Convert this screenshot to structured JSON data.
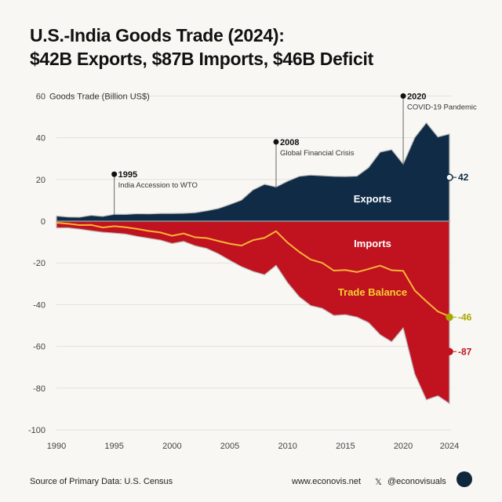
{
  "title_line1": "U.S.-India Goods Trade (2024):",
  "title_line2": "$42B Exports, $87B Imports, $46B Deficit",
  "footer": {
    "source": "Source of Primary Data: U.S. Census",
    "website": "www.econovis.net",
    "handle": "@econovisuals",
    "logo": "EV"
  },
  "chart_data": {
    "type": "area",
    "ylabel": "Goods Trade (Billion US$)",
    "ylim": [
      -100,
      60
    ],
    "yticks": [
      60,
      40,
      20,
      0,
      -20,
      -40,
      -60,
      -80,
      -100
    ],
    "xticks": [
      1990,
      1995,
      2000,
      2005,
      2010,
      2015,
      2020,
      2024
    ],
    "x": [
      1990,
      1991,
      1992,
      1993,
      1994,
      1995,
      1996,
      1997,
      1998,
      1999,
      2000,
      2001,
      2002,
      2003,
      2004,
      2005,
      2006,
      2007,
      2008,
      2009,
      2010,
      2011,
      2012,
      2013,
      2014,
      2015,
      2016,
      2017,
      2018,
      2019,
      2020,
      2021,
      2022,
      2023,
      2024
    ],
    "series": [
      {
        "name": "Exports",
        "color": "#0f2b46",
        "values": [
          2.5,
          2.0,
          1.9,
          2.8,
          2.3,
          3.3,
          3.3,
          3.6,
          3.5,
          3.7,
          3.7,
          3.8,
          4.1,
          5.0,
          6.1,
          8.0,
          10.1,
          15.0,
          17.7,
          16.4,
          19.2,
          21.5,
          22.1,
          21.8,
          21.5,
          21.4,
          21.6,
          25.7,
          33.1,
          34.3,
          27.4,
          40.1,
          47.2,
          40.4,
          41.8
        ]
      },
      {
        "name": "Imports",
        "color": "#c1121f",
        "values": [
          -3.2,
          -3.2,
          -3.8,
          -4.6,
          -5.3,
          -5.7,
          -6.2,
          -7.3,
          -8.2,
          -9.1,
          -10.7,
          -9.7,
          -11.8,
          -13.1,
          -15.6,
          -18.8,
          -21.8,
          -24.1,
          -25.7,
          -21.2,
          -29.5,
          -36.2,
          -40.5,
          -41.8,
          -45.2,
          -44.8,
          -46.0,
          -48.6,
          -54.4,
          -57.8,
          -51.2,
          -73.3,
          -85.6,
          -83.7,
          -87.4
        ]
      },
      {
        "name": "Trade Balance",
        "color": "#f7b538",
        "values": [
          -0.7,
          -1.2,
          -1.9,
          -1.8,
          -3.0,
          -2.4,
          -2.9,
          -3.7,
          -4.7,
          -5.4,
          -7.0,
          -5.9,
          -7.7,
          -8.1,
          -9.5,
          -10.8,
          -11.7,
          -9.1,
          -8.0,
          -4.8,
          -10.3,
          -14.7,
          -18.4,
          -20.0,
          -23.7,
          -23.4,
          -24.4,
          -22.9,
          -21.3,
          -23.5,
          -23.8,
          -33.2,
          -38.4,
          -43.3,
          -45.6
        ]
      }
    ],
    "end_labels": {
      "Exports": "42",
      "Imports": "-87",
      "Trade Balance": "-46"
    },
    "annotations": [
      {
        "year": 1995,
        "label": "1995",
        "text": "India Accession to WTO"
      },
      {
        "year": 2008,
        "label": "2008",
        "text": "Global Financial Crisis"
      },
      {
        "year": 2020,
        "label": "2020",
        "text": "COVID-19 Pandemic"
      }
    ]
  }
}
